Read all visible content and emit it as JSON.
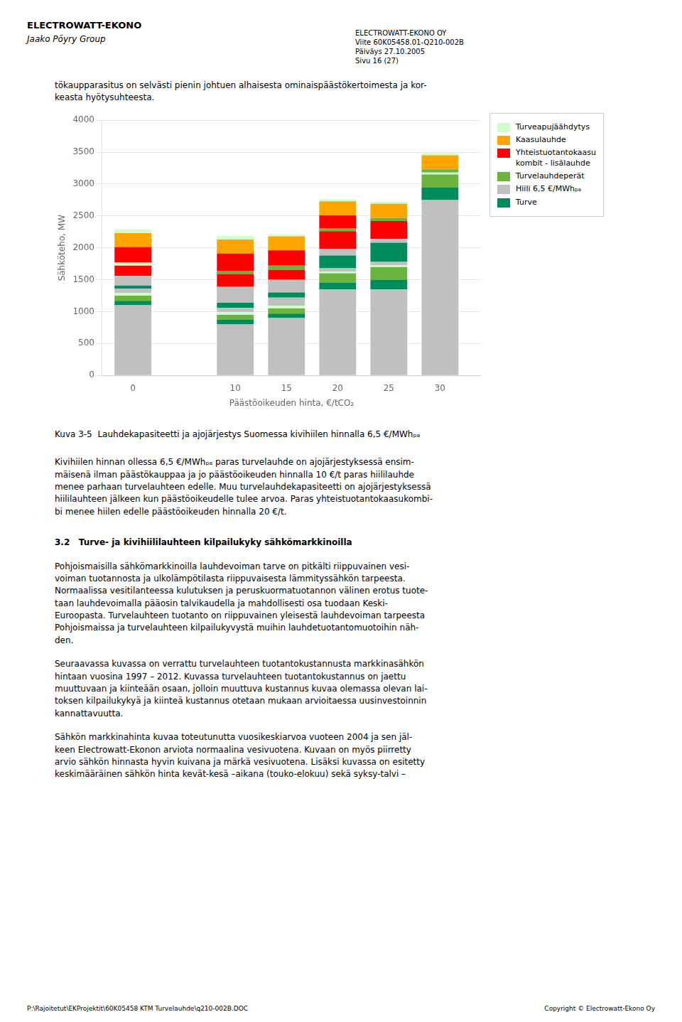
{
  "chart_data": {
    "type": "bar",
    "stacked": true,
    "xlabel": "Päästöoikeuden hinta, €/tCO₂",
    "ylabel": "Sähköteho, MW",
    "x": [
      0,
      10,
      15,
      20,
      25,
      30
    ],
    "xlim": [
      -3,
      34
    ],
    "xticks": [
      0,
      10,
      15,
      20,
      25,
      30
    ],
    "ylim": [
      0,
      4000
    ],
    "yticks": [
      0,
      500,
      1000,
      1500,
      2000,
      2500,
      3000,
      3500,
      4000
    ],
    "grid": "y",
    "legend": "upper right",
    "series": [
      {
        "name": "Hiili 6,5 €/MWhₚₐ",
        "color": "#C0C0C0",
        "values": [
          1100,
          800,
          900,
          1350,
          1350,
          2750
        ]
      },
      {
        "name": "Turve",
        "color": "#008B5C",
        "values": [
          70,
          70,
          70,
          100,
          150,
          200
        ]
      },
      {
        "name": "Turvelauhdeperät",
        "color": "#6DB33F",
        "values": [
          80,
          80,
          80,
          150,
          200,
          200
        ]
      },
      {
        "name": "Turveapujäähdytys",
        "color": "#CCFFCC",
        "values": [
          40,
          40,
          40,
          30,
          30,
          30
        ]
      },
      {
        "name": "Hiili 6,5 €/MWhₚₐ",
        "color": "#C0C0C0",
        "values": [
          70,
          70,
          130,
          50,
          50,
          0
        ]
      },
      {
        "name": "Turve",
        "color": "#008B5C",
        "values": [
          50,
          80,
          80,
          200,
          300,
          0
        ]
      },
      {
        "name": "Hiili 6,5 €/MWhₚₐ",
        "color": "#C0C0C0",
        "values": [
          150,
          250,
          200,
          100,
          60,
          0
        ]
      },
      {
        "name": "Yhteistuotantokaasu\nkombit - lisälauhde",
        "color": "#FF0000",
        "values": [
          160,
          200,
          150,
          280,
          280,
          0
        ]
      },
      {
        "name": "Turveapujäähdytys",
        "color": "#CCFFCC",
        "values": [
          50,
          null,
          null,
          null,
          null,
          null
        ]
      },
      {
        "name": "Turvelauhdeperät",
        "color": "#6DB33F",
        "values": [
          null,
          50,
          70,
          50,
          50,
          50
        ]
      },
      {
        "name": "Yhteistuotantokaasu\nkombit - lisälauhde",
        "color": "#FF0000",
        "values": [
          240,
          270,
          240,
          200,
          0,
          0
        ]
      },
      {
        "name": "Kaasulauhde",
        "color": "#FFA500",
        "values": [
          220,
          220,
          220,
          220,
          220,
          220
        ]
      },
      {
        "name": "Turveapujäähdytys",
        "color": "#CCFFCC",
        "values": [
          60,
          60,
          30,
          30,
          30,
          30
        ]
      }
    ],
    "annotations": [
      "ELECTROWATT-EKONO OY\nViite 60K05458.01-Q210-002B\nPäiväys 27.10.2005\nSivu 16 (27)",
      "ELECTROWATT-EKONO",
      "Jaako Pöyry Group",
      "tökaupparasitus on selvästi pienin johtuen alhaisesta ominaispäästökertoimesta ja kor-\nkeasta hyötysuhteesta.",
      "Kuva 3-5  Lauhdekapasiteetti ja ajojärjestys Suomessa kivihiilen hinnalla 6,5 €/MWhₚₐ",
      "Kivihiilen hinnan ollessa 6,5 €/MWhₚₐ paras turvelauhde on ajojärjestyksessä ensim-\nmäisenä ilman päästökauppaa ja jo päästöoikeuden hinnalla 10 €/t paras hiililauhde\nmenee parhaan turvelauhteen edelle. Muu turvelauhdekapasiteetti on ajojärjestyksessä\nhiililauhteen jälkeen kun päästöoikeudelle tulee arvoa. Paras yhteistuotantokaasukombi-\nbi menee hiilen edelle päästöoikeuden hinnalla 20 €/t.",
      "3.2   Turve- ja kivihiililauhteen kilpailukyky sähkömarkkinoilla",
      "Pohjoismaisilla sähkömarkkinoilla lauhdevoiman tarve on pitkälti riippuvainen vesi-\nvoiman tuotannosta ja ulkolämpötilasta riippuvaisesta lämmityssähkön tarpeesta.\nNormaalissa vesitilanteessa kulutuksen ja peruskuormatuotannon välinen erotus tuote-\ntaan lauhdevoimalla pääosin talvikaudella ja mahdollisesti osa tuodaan Keski-\nEuroopasta. Turvelauhteen tuotanto on riippuvainen yleisestä lauhdevoiman tarpeesta\nPohjoismaissa ja turvelauhteen kilpailukyvystä muihin lauhdetuotantomuotoihin näh-\nden.",
      "Seuraavassa kuvassa on verrattu turvelauhteen tuotantokustannusta markkinasähkön\nhintaan vuosina 1997 – 2012. Kuvassa turvelauhteen tuotantokustannus on jaettu\nmuuttuvaan ja kiinteään osaan, jolloin muuttuva kustannus kuvaa olemassa olevan lai-\ntoksen kilpailukykyä ja kiinteä kustannus otetaan mukaan arvioitaessa uusinvestoinnin\nkannattavuutta.",
      "Sähkön markkinahinta kuvaa toteutunutta vuosikeskiarvoa vuoteen 2004 ja sen jäl-\nkeen Electrowatt-Ekonon arviota normaalina vesivuotena. Kuvaan on myös piirretty\narvio sähkön hinnasta hyvin kuivana ja märkä vesivuotena. Lisäksi kuvassa on esitetty\nkeskimääräinen sähkön hinta kevät-kesä –aikana (touko-elokuu) sekä syksy-talvi –",
      "P:\\Rajoitetut\\EKProjektit\\60K05458 KTM Turvelauhde\\q210-002B.DOC",
      "Copyright © Electrowatt-Ekono Oy"
    ]
  }
}
